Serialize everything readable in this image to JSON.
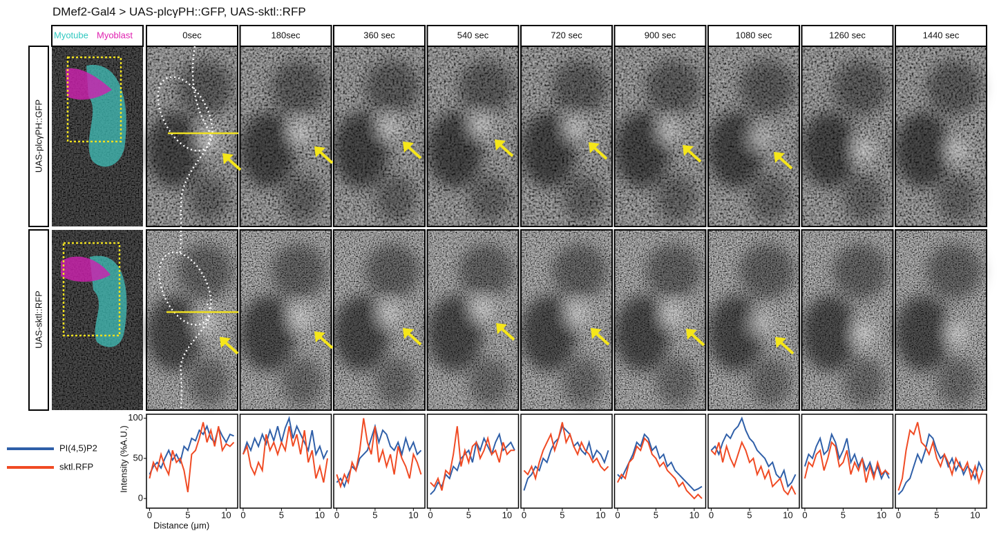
{
  "title": "DMef2-Gal4 > UAS-plcγPH::GFP, UAS-sktl::RFP",
  "overview": {
    "myotube": "Myotube",
    "myoblast": "Myoblast"
  },
  "row_labels": [
    "UAS-plcγPH::GFP",
    "UAS-sktl::RFP"
  ],
  "time_labels": [
    "0sec",
    "180sec",
    "360 sec",
    "540 sec",
    "720 sec",
    "900 sec",
    "1080 sec",
    "1260 sec",
    "1440 sec"
  ],
  "chart_data": [
    {
      "type": "line",
      "xlabel": "Distance (μm)",
      "ylabel": "Intensity (%A.U.)",
      "x": [
        0,
        0.5,
        1,
        1.5,
        2,
        2.5,
        3,
        3.5,
        4,
        4.5,
        5,
        5.5,
        6,
        6.5,
        7,
        7.5,
        8,
        8.5,
        9,
        9.5,
        10,
        10.5,
        11
      ],
      "xlim": [
        -0.4,
        11.5
      ],
      "ylim": [
        -12,
        105
      ],
      "xticks": [
        0,
        5,
        10
      ],
      "yticks": [
        0,
        50,
        100
      ],
      "series": [
        {
          "name": "PI(4,5)P2",
          "color": "#2f5fa8",
          "values": [
            30,
            40,
            45,
            38,
            50,
            60,
            48,
            55,
            45,
            65,
            60,
            75,
            72,
            85,
            80,
            90,
            75,
            70,
            88,
            78,
            70,
            80,
            78
          ]
        },
        {
          "name": "sktl.RFP",
          "color": "#f04a23",
          "values": [
            25,
            45,
            35,
            55,
            40,
            30,
            60,
            45,
            50,
            35,
            8,
            55,
            60,
            75,
            95,
            70,
            85,
            65,
            90,
            60,
            68,
            65,
            70
          ]
        }
      ]
    },
    {
      "type": "line",
      "x": [
        0,
        0.5,
        1,
        1.5,
        2,
        2.5,
        3,
        3.5,
        4,
        4.5,
        5,
        5.5,
        6,
        6.5,
        7,
        7.5,
        8,
        8.5,
        9,
        9.5,
        10,
        10.5,
        11
      ],
      "xlim": [
        -0.4,
        11.5
      ],
      "ylim": [
        -12,
        105
      ],
      "xticks": [
        0,
        5,
        10
      ],
      "series": [
        {
          "name": "PI(4,5)P2",
          "color": "#2f5fa8",
          "values": [
            55,
            70,
            60,
            75,
            65,
            80,
            68,
            85,
            72,
            90,
            70,
            88,
            100,
            75,
            90,
            80,
            70,
            60,
            85,
            55,
            65,
            50,
            60
          ]
        },
        {
          "name": "sktl.RFP",
          "color": "#f04a23",
          "values": [
            55,
            65,
            40,
            30,
            45,
            35,
            80,
            60,
            70,
            55,
            70,
            60,
            90,
            65,
            80,
            55,
            85,
            45,
            60,
            25,
            40,
            20,
            50
          ]
        }
      ]
    },
    {
      "type": "line",
      "x": [
        0,
        0.5,
        1,
        1.5,
        2,
        2.5,
        3,
        3.5,
        4,
        4.5,
        5,
        5.5,
        6,
        6.5,
        7,
        7.5,
        8,
        8.5,
        9,
        9.5,
        10,
        10.5,
        11
      ],
      "xlim": [
        -0.4,
        11.5
      ],
      "ylim": [
        -12,
        105
      ],
      "xticks": [
        0,
        5,
        10
      ],
      "series": [
        {
          "name": "PI(4,5)P2",
          "color": "#2f5fa8",
          "values": [
            20,
            25,
            15,
            30,
            40,
            35,
            50,
            55,
            60,
            75,
            90,
            70,
            85,
            80,
            65,
            60,
            70,
            55,
            75,
            60,
            70,
            55,
            60
          ]
        },
        {
          "name": "sktl.RFP",
          "color": "#f04a23",
          "values": [
            30,
            15,
            30,
            20,
            45,
            35,
            60,
            100,
            70,
            55,
            90,
            45,
            60,
            40,
            55,
            30,
            65,
            50,
            40,
            25,
            55,
            45,
            30
          ]
        }
      ]
    },
    {
      "type": "line",
      "x": [
        0,
        0.5,
        1,
        1.5,
        2,
        2.5,
        3,
        3.5,
        4,
        4.5,
        5,
        5.5,
        6,
        6.5,
        7,
        7.5,
        8,
        8.5,
        9,
        9.5,
        10,
        10.5,
        11
      ],
      "xlim": [
        -0.4,
        11.5
      ],
      "ylim": [
        -12,
        105
      ],
      "xticks": [
        0,
        5,
        10
      ],
      "series": [
        {
          "name": "PI(4,5)P2",
          "color": "#2f5fa8",
          "values": [
            5,
            10,
            20,
            15,
            30,
            25,
            40,
            35,
            50,
            55,
            60,
            45,
            70,
            60,
            75,
            65,
            55,
            70,
            80,
            60,
            65,
            70,
            60
          ]
        },
        {
          "name": "sktl.RFP",
          "color": "#f04a23",
          "values": [
            20,
            15,
            25,
            10,
            35,
            30,
            55,
            90,
            40,
            60,
            45,
            65,
            70,
            50,
            60,
            75,
            55,
            60,
            45,
            70,
            55,
            60,
            60
          ]
        }
      ]
    },
    {
      "type": "line",
      "x": [
        0,
        0.5,
        1,
        1.5,
        2,
        2.5,
        3,
        3.5,
        4,
        4.5,
        5,
        5.5,
        6,
        6.5,
        7,
        7.5,
        8,
        8.5,
        9,
        9.5,
        10,
        10.5,
        11
      ],
      "xlim": [
        -0.4,
        11.5
      ],
      "ylim": [
        -12,
        105
      ],
      "xticks": [
        0,
        5,
        10
      ],
      "series": [
        {
          "name": "PI(4,5)P2",
          "color": "#2f5fa8",
          "values": [
            10,
            25,
            30,
            40,
            35,
            50,
            45,
            60,
            70,
            75,
            90,
            85,
            80,
            65,
            70,
            60,
            55,
            70,
            50,
            60,
            55,
            45,
            60
          ]
        },
        {
          "name": "sktl.RFP",
          "color": "#f04a23",
          "values": [
            35,
            30,
            40,
            25,
            45,
            60,
            70,
            80,
            60,
            75,
            95,
            70,
            80,
            65,
            55,
            70,
            60,
            55,
            45,
            50,
            40,
            35,
            40
          ]
        }
      ]
    },
    {
      "type": "line",
      "x": [
        0,
        0.5,
        1,
        1.5,
        2,
        2.5,
        3,
        3.5,
        4,
        4.5,
        5,
        5.5,
        6,
        6.5,
        7,
        7.5,
        8,
        8.5,
        9,
        9.5,
        10,
        10.5,
        11
      ],
      "xlim": [
        -0.4,
        11.5
      ],
      "ylim": [
        -12,
        105
      ],
      "xticks": [
        0,
        5,
        10
      ],
      "series": [
        {
          "name": "PI(4,5)P2",
          "color": "#2f5fa8",
          "values": [
            30,
            25,
            35,
            45,
            55,
            70,
            65,
            80,
            75,
            60,
            65,
            50,
            55,
            40,
            45,
            35,
            30,
            25,
            20,
            15,
            10,
            12,
            15
          ]
        },
        {
          "name": "sktl.RFP",
          "color": "#f04a23",
          "values": [
            20,
            30,
            25,
            45,
            50,
            65,
            60,
            75,
            70,
            55,
            50,
            40,
            45,
            35,
            30,
            25,
            15,
            20,
            10,
            5,
            0,
            5,
            0
          ]
        }
      ]
    },
    {
      "type": "line",
      "x": [
        0,
        0.5,
        1,
        1.5,
        2,
        2.5,
        3,
        3.5,
        4,
        4.5,
        5,
        5.5,
        6,
        6.5,
        7,
        7.5,
        8,
        8.5,
        9,
        9.5,
        10,
        10.5,
        11
      ],
      "xlim": [
        -0.4,
        11.5
      ],
      "ylim": [
        -12,
        105
      ],
      "xticks": [
        0,
        5,
        10
      ],
      "series": [
        {
          "name": "PI(4,5)P2",
          "color": "#2f5fa8",
          "values": [
            60,
            65,
            55,
            70,
            80,
            75,
            85,
            90,
            100,
            85,
            75,
            70,
            60,
            55,
            50,
            40,
            45,
            30,
            25,
            35,
            15,
            20,
            30
          ]
        },
        {
          "name": "sktl.RFP",
          "color": "#f04a23",
          "values": [
            60,
            55,
            70,
            45,
            65,
            50,
            40,
            55,
            70,
            60,
            45,
            50,
            30,
            40,
            25,
            35,
            15,
            20,
            25,
            10,
            5,
            15,
            5
          ]
        }
      ]
    },
    {
      "type": "line",
      "x": [
        0,
        0.5,
        1,
        1.5,
        2,
        2.5,
        3,
        3.5,
        4,
        4.5,
        5,
        5.5,
        6,
        6.5,
        7,
        7.5,
        8,
        8.5,
        9,
        9.5,
        10,
        10.5,
        11
      ],
      "xlim": [
        -0.4,
        11.5
      ],
      "ylim": [
        -12,
        105
      ],
      "xticks": [
        0,
        5,
        10
      ],
      "series": [
        {
          "name": "PI(4,5)P2",
          "color": "#2f5fa8",
          "values": [
            40,
            55,
            50,
            65,
            75,
            55,
            60,
            80,
            70,
            50,
            60,
            75,
            45,
            55,
            40,
            50,
            35,
            45,
            30,
            40,
            25,
            35,
            25
          ]
        },
        {
          "name": "sktl.RFP",
          "color": "#f04a23",
          "values": [
            25,
            45,
            40,
            55,
            60,
            35,
            50,
            70,
            65,
            40,
            45,
            60,
            30,
            45,
            35,
            50,
            20,
            40,
            25,
            45,
            30,
            35,
            30
          ]
        }
      ]
    },
    {
      "type": "line",
      "x": [
        0,
        0.5,
        1,
        1.5,
        2,
        2.5,
        3,
        3.5,
        4,
        4.5,
        5,
        5.5,
        6,
        6.5,
        7,
        7.5,
        8,
        8.5,
        9,
        9.5,
        10,
        10.5,
        11
      ],
      "xlim": [
        -0.4,
        11.5
      ],
      "ylim": [
        -12,
        105
      ],
      "xticks": [
        0,
        5,
        10
      ],
      "series": [
        {
          "name": "PI(4,5)P2",
          "color": "#2f5fa8",
          "values": [
            5,
            10,
            20,
            25,
            40,
            55,
            45,
            60,
            80,
            75,
            60,
            50,
            55,
            40,
            50,
            35,
            45,
            30,
            40,
            35,
            25,
            45,
            35
          ]
        },
        {
          "name": "sktl.RFP",
          "color": "#f04a23",
          "values": [
            10,
            25,
            60,
            85,
            80,
            95,
            70,
            65,
            55,
            70,
            50,
            40,
            55,
            45,
            30,
            50,
            40,
            35,
            45,
            25,
            40,
            20,
            35
          ]
        }
      ]
    }
  ]
}
